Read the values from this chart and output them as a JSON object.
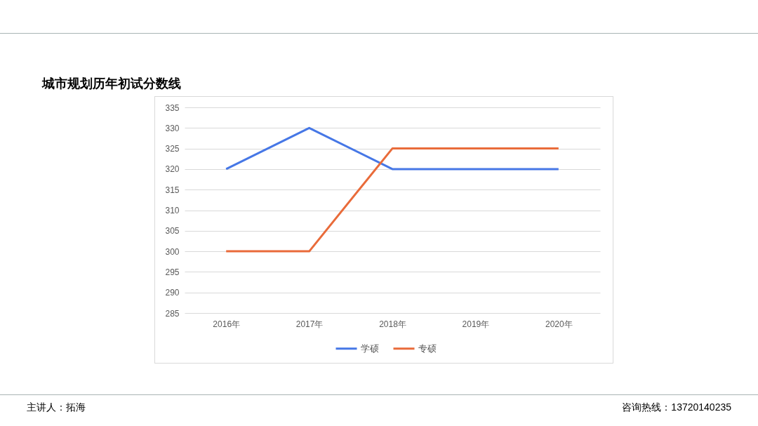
{
  "chart_data": {
    "type": "line",
    "title": "城市规划历年初试分数线",
    "categories": [
      "2016年",
      "2017年",
      "2018年",
      "2019年",
      "2020年"
    ],
    "series": [
      {
        "name": "学硕",
        "color": "#4677e6",
        "values": [
          320,
          330,
          320,
          320,
          320
        ]
      },
      {
        "name": "专硕",
        "color": "#e96b3a",
        "values": [
          300,
          300,
          325,
          325,
          325
        ]
      }
    ],
    "ylim": [
      285,
      335
    ],
    "yticks": [
      285,
      290,
      295,
      300,
      305,
      310,
      315,
      320,
      325,
      330,
      335
    ],
    "grid": "y",
    "legend": "bottom",
    "annotations": [
      "主讲人：拓海",
      "咨询热线：13720140235"
    ]
  }
}
